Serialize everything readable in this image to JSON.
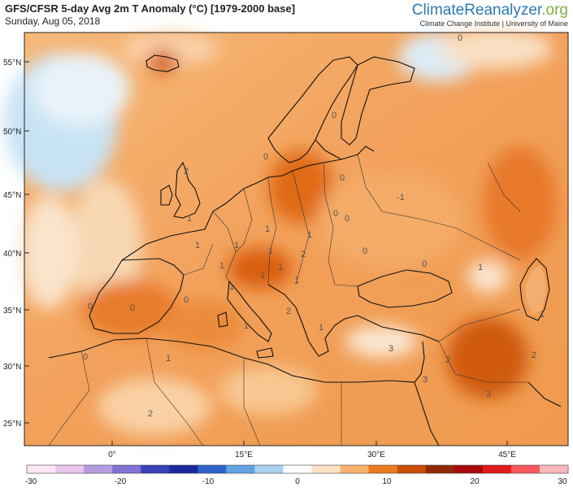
{
  "header": {
    "title": "GFS/CFSR 5-day Avg 2m T Anomaly (°C) [1979-2000 base]",
    "date": "Sunday, Aug 05, 2018",
    "brand_part1": "Climate",
    "brand_part2": "Reanalyzer",
    "brand_part3": ".org",
    "institute": "Climate Change Institute | University of Maine"
  },
  "map": {
    "lat_labels": [
      "55°N",
      "50°N",
      "45°N",
      "40°N",
      "35°N",
      "30°N",
      "25°N"
    ],
    "lon_labels": [
      "0°",
      "15°E",
      "30°E",
      "45°E"
    ],
    "contour_labels": [
      "0",
      "0",
      "1",
      "1",
      "1",
      "1",
      "1",
      "1",
      "2",
      "1",
      "1",
      "1",
      "2",
      "0",
      "1",
      "1",
      "0",
      "1",
      "0",
      "0",
      "1",
      "3",
      "2",
      "2",
      "3",
      "3",
      "2",
      "0",
      "0",
      "0",
      "-1",
      "0",
      "0",
      "0",
      "1",
      "1",
      "2",
      "1"
    ]
  },
  "colorbar": {
    "ticks": [
      "-30",
      "-20",
      "-10",
      "0",
      "10",
      "20",
      "30"
    ],
    "colors": [
      "#fbe6f2",
      "#e8c6ec",
      "#b59be0",
      "#7f72d2",
      "#3a40b8",
      "#1a2a9a",
      "#2d64c9",
      "#62a3e3",
      "#a8d2f0",
      "#ffffff",
      "#fde3c4",
      "#f9b16c",
      "#ec7a21",
      "#c94d05",
      "#8f2a02",
      "#a80a0a",
      "#e21a1a",
      "#f7585d",
      "#fbb5bc"
    ]
  }
}
